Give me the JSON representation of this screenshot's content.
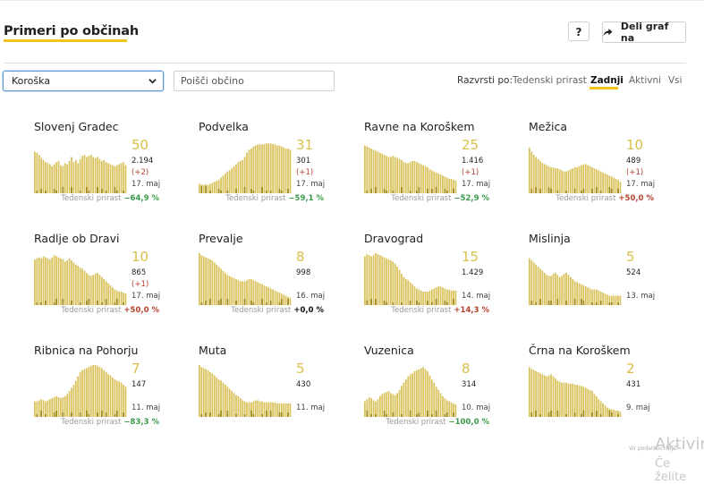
{
  "header": {
    "title": "Primeri po občinah",
    "help_label": "?",
    "share_label": "Deli graf na"
  },
  "filters": {
    "region": "Koroška",
    "search_placeholder": "Poišči občino",
    "sort_label": "Razvrsti po:",
    "sort_options": [
      "Tedenski prirast",
      "Zadnji",
      "Aktivni",
      "Vsi"
    ],
    "sort_active": "Zadnji"
  },
  "trend_label": "Tedenski prirast",
  "colors": {
    "accent": "#f0c419",
    "bar": "#d9c25b",
    "bar_dark": "#a08a1c",
    "decrease": "#3a9a4a",
    "increase": "#b5402f"
  },
  "municipalities": [
    {
      "name": "Slovenj Gradec",
      "latest": "50",
      "total": "2.194",
      "delta": "(+2)",
      "date": "17. maj",
      "trend": "−64,9 %",
      "dir": "down",
      "bars": [
        80,
        78,
        74,
        68,
        64,
        60,
        58,
        56,
        52,
        56,
        60,
        62,
        54,
        52,
        58,
        56,
        62,
        70,
        60,
        64,
        58,
        66,
        72,
        74,
        70,
        72,
        74,
        70,
        68,
        70,
        66,
        62,
        64,
        60,
        58,
        56,
        54,
        52,
        54,
        56,
        58,
        60,
        54
      ]
    },
    {
      "name": "Podvelka",
      "latest": "31",
      "total": "301",
      "delta": "(+1)",
      "date": "17. maj",
      "trend": "−59,1 %",
      "dir": "down",
      "bars": [
        18,
        17,
        16,
        17,
        16,
        18,
        20,
        22,
        24,
        26,
        30,
        34,
        38,
        42,
        44,
        48,
        52,
        56,
        60,
        62,
        64,
        70,
        78,
        84,
        86,
        90,
        92,
        94,
        94,
        94,
        95,
        96,
        96,
        96,
        95,
        94,
        92,
        92,
        90,
        88,
        86,
        86,
        84
      ]
    },
    {
      "name": "Ravne na Koroškem",
      "latest": "25",
      "total": "1.416",
      "delta": "(+1)",
      "date": "17. maj",
      "trend": "−52,9 %",
      "dir": "down",
      "bars": [
        92,
        90,
        88,
        86,
        84,
        82,
        80,
        78,
        76,
        74,
        72,
        70,
        70,
        72,
        70,
        68,
        66,
        64,
        60,
        58,
        58,
        60,
        62,
        62,
        60,
        58,
        56,
        54,
        52,
        50,
        46,
        44,
        42,
        40,
        38,
        36,
        34,
        32,
        30,
        28,
        28,
        26,
        24
      ]
    },
    {
      "name": "Mežica",
      "latest": "10",
      "total": "489",
      "delta": "(+1)",
      "date": "17. maj",
      "trend": "+50,0 %",
      "dir": "up",
      "bars": [
        88,
        80,
        74,
        70,
        66,
        62,
        58,
        56,
        54,
        52,
        50,
        50,
        48,
        48,
        46,
        44,
        42,
        42,
        44,
        46,
        48,
        50,
        50,
        52,
        54,
        56,
        56,
        54,
        52,
        50,
        48,
        46,
        44,
        42,
        40,
        38,
        36,
        34,
        32,
        30,
        28,
        26,
        22
      ]
    },
    {
      "name": "Radlje ob Dravi",
      "latest": "10",
      "total": "865",
      "delta": "(+1)",
      "date": "17. maj",
      "trend": "+50,0 %",
      "dir": "up",
      "bars": [
        88,
        90,
        92,
        90,
        94,
        92,
        90,
        88,
        92,
        96,
        94,
        92,
        90,
        88,
        84,
        86,
        90,
        86,
        82,
        78,
        76,
        72,
        70,
        66,
        62,
        58,
        56,
        58,
        60,
        62,
        58,
        54,
        50,
        46,
        42,
        38,
        34,
        30,
        28,
        26,
        26,
        24,
        22
      ]
    },
    {
      "name": "Prevalje",
      "latest": "8",
      "total": "998",
      "delta": "",
      "date": "16. maj",
      "trend": "+0,0 %",
      "dir": "flat",
      "bars": [
        100,
        96,
        94,
        92,
        90,
        88,
        86,
        82,
        78,
        74,
        70,
        66,
        62,
        58,
        56,
        54,
        52,
        50,
        48,
        46,
        46,
        46,
        48,
        50,
        50,
        48,
        46,
        44,
        42,
        40,
        38,
        36,
        34,
        32,
        30,
        28,
        26,
        24,
        22,
        20,
        18,
        16,
        14
      ]
    },
    {
      "name": "Dravograd",
      "latest": "15",
      "total": "1.429",
      "delta": "",
      "date": "14. maj",
      "trend": "+14,3 %",
      "dir": "up",
      "bars": [
        94,
        98,
        96,
        94,
        96,
        100,
        98,
        96,
        94,
        92,
        90,
        88,
        86,
        84,
        80,
        74,
        68,
        60,
        54,
        50,
        48,
        44,
        40,
        36,
        32,
        30,
        28,
        26,
        26,
        26,
        28,
        30,
        32,
        34,
        36,
        36,
        34,
        32,
        30,
        30,
        28,
        28,
        28
      ]
    },
    {
      "name": "Mislinja",
      "latest": "5",
      "total": "524",
      "delta": "",
      "date": "13. maj",
      "trend": "",
      "dir": "",
      "bars": [
        90,
        86,
        82,
        78,
        74,
        70,
        66,
        62,
        58,
        56,
        56,
        60,
        62,
        58,
        54,
        56,
        60,
        62,
        58,
        54,
        50,
        46,
        44,
        42,
        40,
        38,
        36,
        34,
        32,
        30,
        30,
        30,
        28,
        26,
        24,
        22,
        20,
        18,
        18,
        18,
        18,
        18,
        18
      ]
    },
    {
      "name": "Ribnica na Pohorju",
      "latest": "7",
      "total": "147",
      "delta": "",
      "date": "11. maj",
      "trend": "−83,3 %",
      "dir": "down",
      "bars": [
        30,
        30,
        32,
        34,
        32,
        30,
        32,
        34,
        36,
        38,
        40,
        38,
        36,
        38,
        40,
        44,
        50,
        56,
        62,
        70,
        78,
        86,
        90,
        92,
        94,
        96,
        98,
        100,
        100,
        98,
        96,
        94,
        90,
        86,
        82,
        80,
        76,
        72,
        70,
        68,
        66,
        62,
        58
      ]
    },
    {
      "name": "Muta",
      "latest": "5",
      "total": "430",
      "delta": "",
      "date": "11. maj",
      "trend": "",
      "dir": "",
      "bars": [
        100,
        96,
        94,
        92,
        90,
        86,
        84,
        80,
        76,
        72,
        70,
        66,
        62,
        58,
        54,
        50,
        46,
        42,
        40,
        36,
        32,
        30,
        28,
        28,
        28,
        30,
        32,
        32,
        30,
        30,
        28,
        28,
        28,
        28,
        28,
        28,
        26,
        26,
        26,
        26,
        26,
        26,
        26
      ]
    },
    {
      "name": "Vuzenica",
      "latest": "8",
      "total": "314",
      "delta": "",
      "date": "10. maj",
      "trend": "−100,0 %",
      "dir": "down",
      "bars": [
        30,
        34,
        38,
        36,
        32,
        30,
        34,
        40,
        44,
        46,
        48,
        50,
        46,
        44,
        42,
        46,
        52,
        60,
        66,
        72,
        78,
        82,
        84,
        88,
        90,
        92,
        94,
        96,
        92,
        88,
        80,
        72,
        66,
        58,
        52,
        46,
        40,
        36,
        32,
        30,
        28,
        26,
        24
      ]
    },
    {
      "name": "Črna na Koroškem",
      "latest": "2",
      "total": "431",
      "delta": "",
      "date": "9. maj",
      "trend": "",
      "dir": "",
      "bars": [
        96,
        92,
        90,
        88,
        86,
        84,
        82,
        80,
        78,
        80,
        82,
        78,
        74,
        70,
        68,
        66,
        66,
        66,
        64,
        64,
        64,
        62,
        62,
        60,
        60,
        58,
        56,
        54,
        52,
        50,
        44,
        40,
        34,
        30,
        26,
        22,
        18,
        16,
        14,
        14,
        12,
        12,
        10
      ]
    }
  ],
  "footer": {
    "note": "Vir podatkov: NIJZ",
    "overlay_line1": "Aktivir",
    "overlay_line2": "Če želite"
  }
}
